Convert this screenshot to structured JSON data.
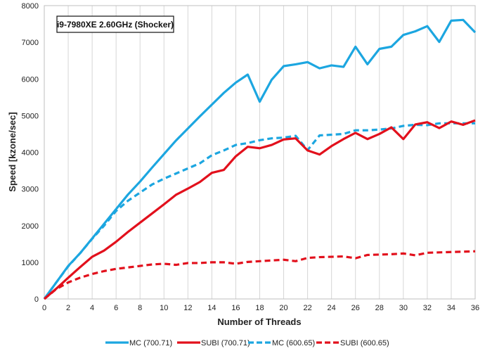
{
  "chart_data": {
    "type": "line",
    "title": "i9-7980XE 2.60GHz (Shocker)",
    "xlabel": "Number of Threads",
    "ylabel": "Speed [kzone/sec]",
    "xlim": [
      0,
      36
    ],
    "ylim": [
      0,
      8000
    ],
    "x_ticks": [
      0,
      2,
      4,
      6,
      8,
      10,
      12,
      14,
      16,
      18,
      20,
      22,
      24,
      26,
      28,
      30,
      32,
      34,
      36
    ],
    "y_ticks": [
      0,
      1000,
      2000,
      3000,
      4000,
      5000,
      6000,
      7000,
      8000
    ],
    "grid": "vertical",
    "legend_position": "bottom",
    "x": [
      0,
      1,
      2,
      3,
      4,
      5,
      6,
      7,
      8,
      9,
      10,
      11,
      12,
      13,
      14,
      15,
      16,
      17,
      18,
      19,
      20,
      21,
      22,
      23,
      24,
      25,
      26,
      27,
      28,
      29,
      30,
      31,
      32,
      33,
      34,
      35,
      36
    ],
    "series": [
      {
        "name": "MC (700.71)",
        "color": "#1ca6e0",
        "dash": "solid",
        "values": [
          0,
          450,
          900,
          1250,
          1650,
          2050,
          2450,
          2850,
          3200,
          3580,
          3950,
          4320,
          4650,
          4980,
          5300,
          5620,
          5900,
          6120,
          5380,
          5980,
          6350,
          6400,
          6460,
          6290,
          6370,
          6330,
          6880,
          6400,
          6820,
          6880,
          7200,
          7300,
          7440,
          7010,
          7590,
          7610,
          7270
        ]
      },
      {
        "name": "SUBI (700.71)",
        "color": "#e2101c",
        "dash": "solid",
        "values": [
          0,
          280,
          580,
          870,
          1150,
          1320,
          1560,
          1830,
          2080,
          2330,
          2580,
          2840,
          3010,
          3190,
          3440,
          3520,
          3890,
          4150,
          4110,
          4200,
          4350,
          4380,
          4050,
          3940,
          4170,
          4360,
          4530,
          4360,
          4500,
          4680,
          4360,
          4760,
          4820,
          4660,
          4840,
          4750,
          4870
        ]
      },
      {
        "name": "MC (600.65)",
        "color": "#1ca6e0",
        "dash": "dashed",
        "values": [
          0,
          450,
          890,
          1250,
          1640,
          2000,
          2400,
          2680,
          2900,
          3120,
          3280,
          3420,
          3560,
          3700,
          3920,
          4050,
          4200,
          4250,
          4330,
          4380,
          4400,
          4450,
          4060,
          4460,
          4480,
          4500,
          4600,
          4600,
          4620,
          4650,
          4720,
          4750,
          4740,
          4790,
          4790,
          4790,
          4790
        ]
      },
      {
        "name": "SUBI (600.65)",
        "color": "#e2101c",
        "dash": "dashed",
        "values": [
          0,
          270,
          450,
          580,
          680,
          760,
          820,
          860,
          900,
          940,
          960,
          930,
          980,
          980,
          1000,
          1000,
          960,
          1010,
          1030,
          1050,
          1070,
          1030,
          1120,
          1140,
          1150,
          1160,
          1110,
          1200,
          1210,
          1220,
          1240,
          1190,
          1260,
          1270,
          1280,
          1290,
          1300
        ]
      }
    ]
  }
}
